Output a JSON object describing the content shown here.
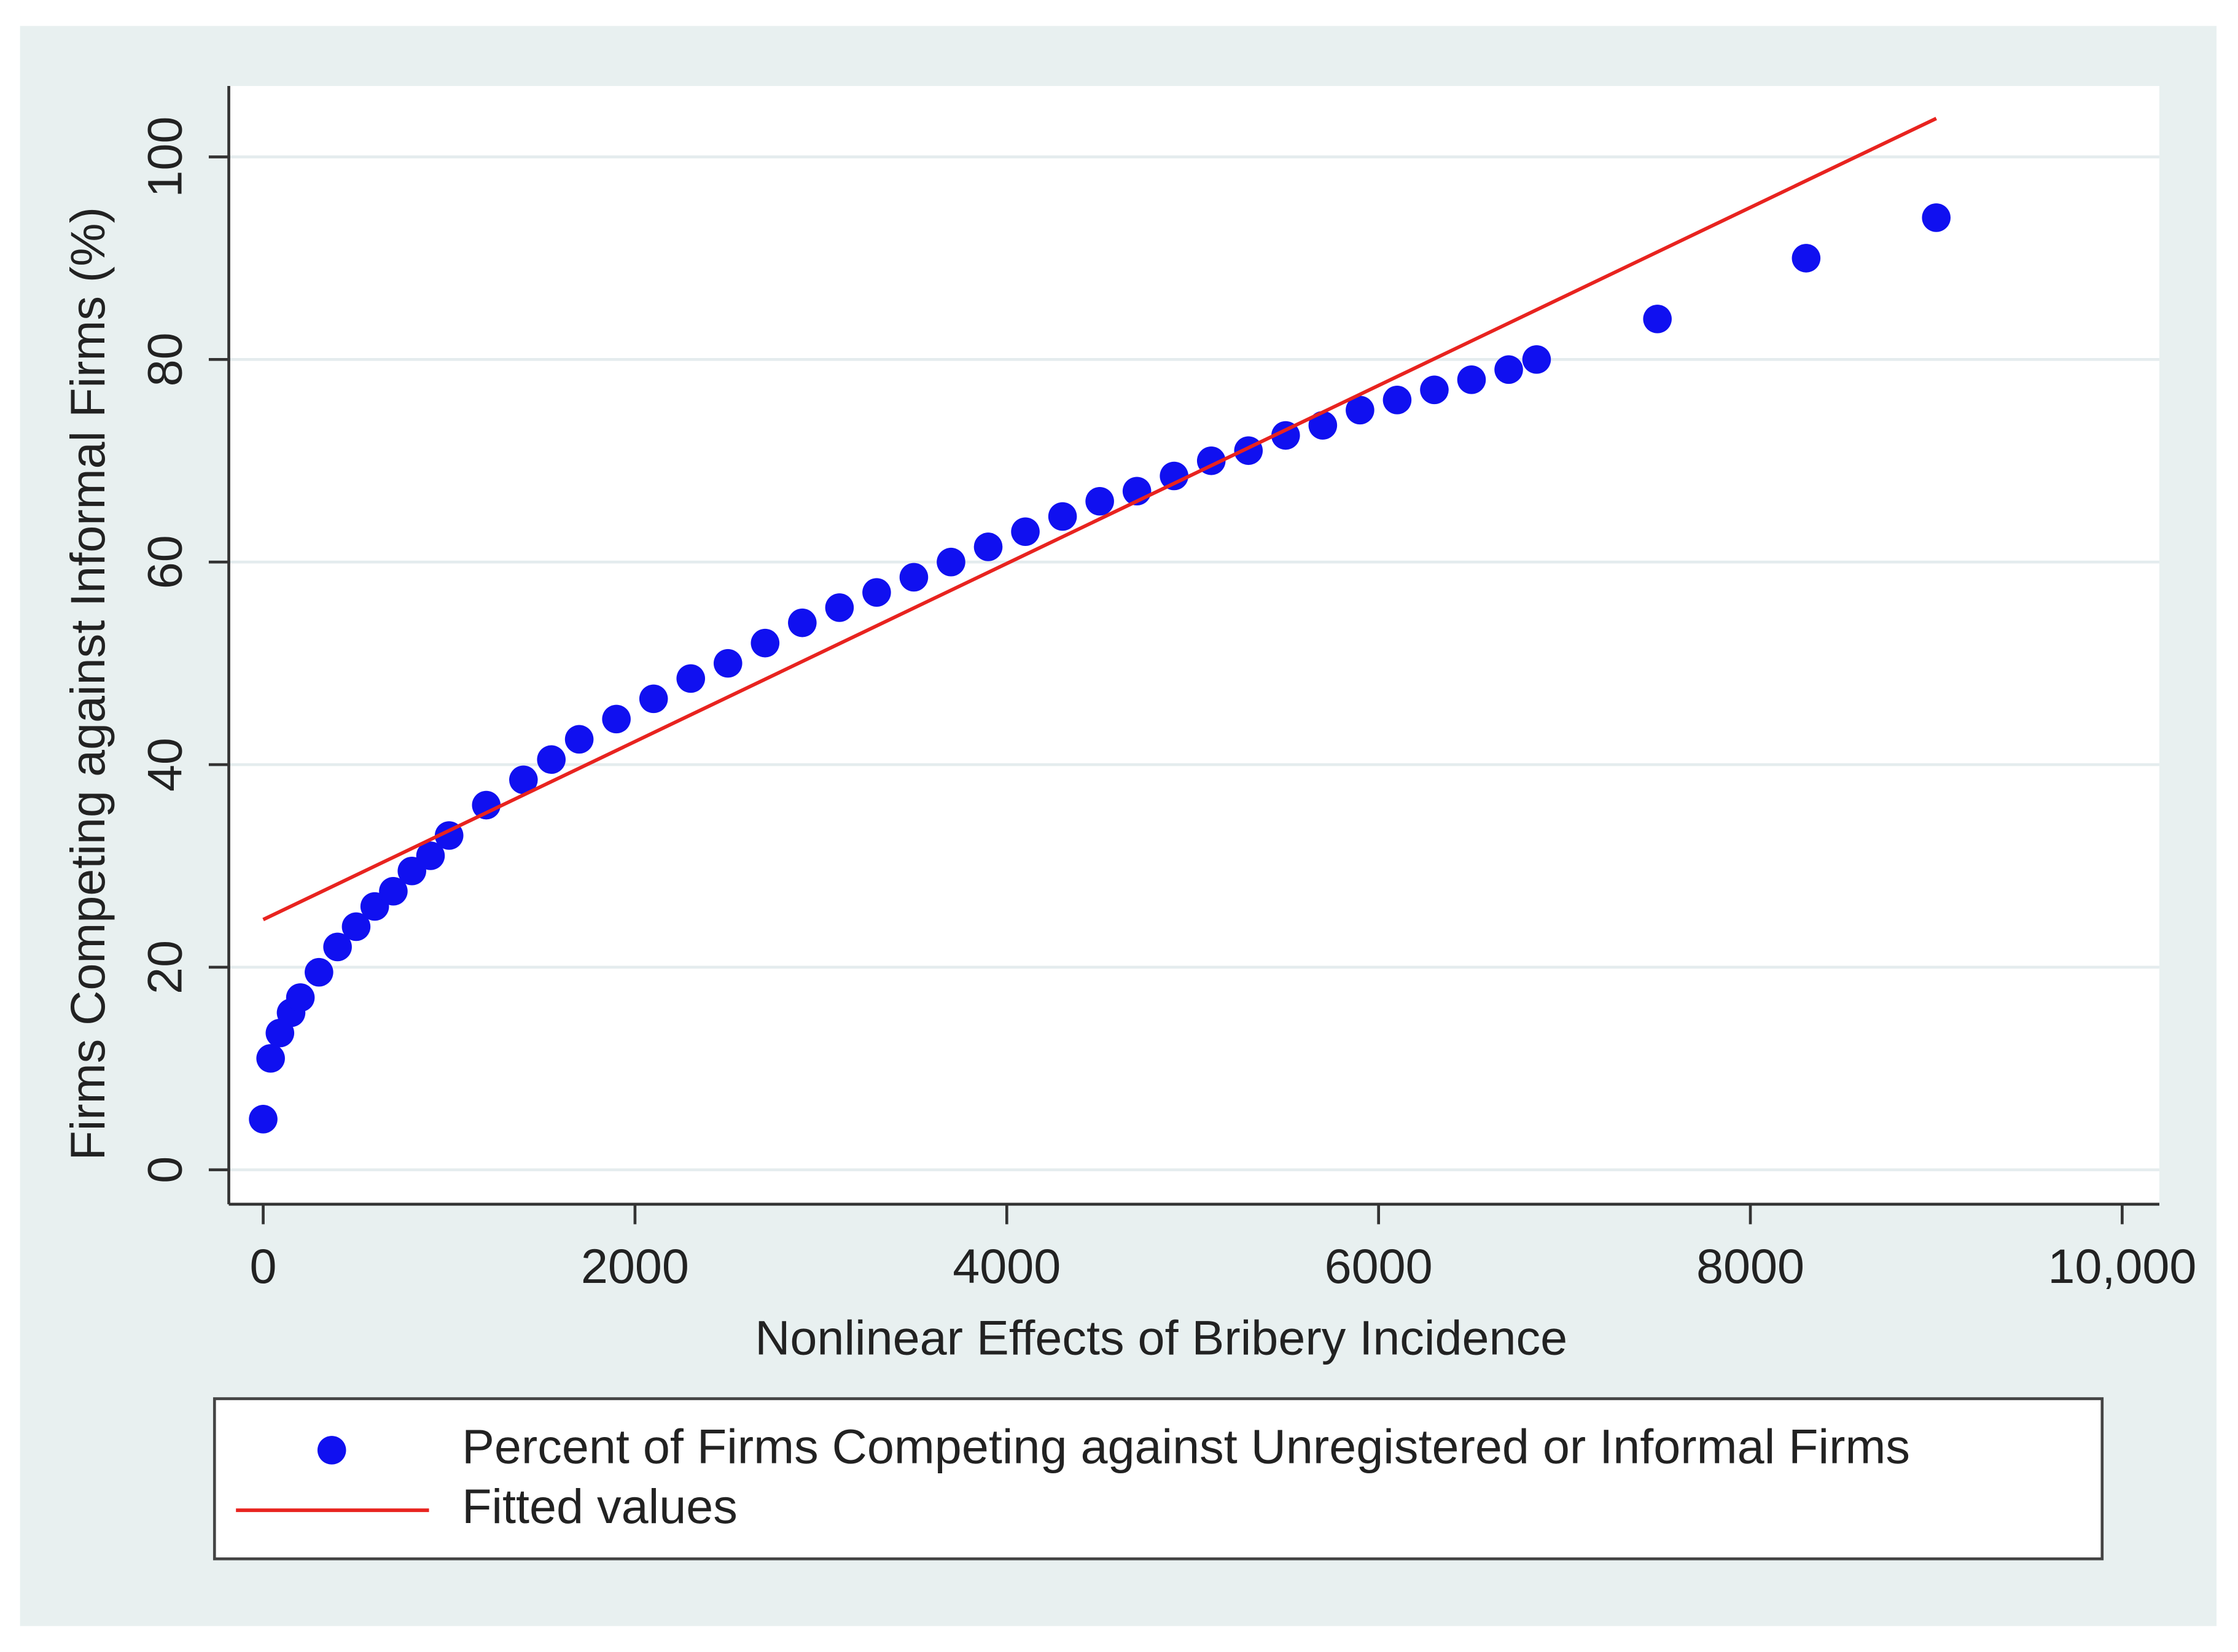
{
  "chart_data": {
    "type": "scatter",
    "x_label": "Nonlinear Effects of Bribery Incidence",
    "y_label": "Firms Competing against Informal Firms (%)",
    "xlim": [
      -185,
      10200
    ],
    "ylim": [
      -3.4,
      107
    ],
    "xticks": [
      0,
      2000,
      4000,
      6000,
      8000,
      {
        "value": 10000,
        "label": "10,000"
      }
    ],
    "yticks": [
      0,
      20,
      40,
      60,
      80,
      100
    ],
    "grid": true,
    "legend": "bottom",
    "series": [
      {
        "name": "Percent of Firms Competing against Unregistered or Informal Firms",
        "type": "scatter",
        "color": "#1010f0",
        "x": [
          0,
          40,
          90,
          150,
          200,
          300,
          400,
          500,
          600,
          700,
          800,
          900,
          1000,
          1200,
          1400,
          1550,
          1700,
          1900,
          2100,
          2300,
          2500,
          2700,
          2900,
          3100,
          3300,
          3500,
          3700,
          3900,
          4100,
          4300,
          4500,
          4700,
          4900,
          5100,
          5300,
          5500,
          5700,
          5900,
          6100,
          6300,
          6500,
          6700,
          6850,
          7500,
          8300,
          9000
        ],
        "y": [
          5,
          11,
          13.5,
          15.5,
          17,
          19.5,
          22,
          24,
          26,
          27.5,
          29.5,
          31,
          33,
          36,
          38.5,
          40.5,
          42.5,
          44.5,
          46.5,
          48.5,
          50,
          52,
          54,
          55.5,
          57,
          58.5,
          60,
          61.5,
          63,
          64.5,
          66,
          67,
          68.5,
          70,
          71,
          72.5,
          73.5,
          75,
          76,
          77,
          78,
          79,
          80,
          84,
          90,
          94
        ]
      },
      {
        "name": "Fitted values",
        "type": "line",
        "color": "#e8231f",
        "x": [
          0,
          9000
        ],
        "y": [
          24.7,
          103.8
        ]
      }
    ]
  }
}
